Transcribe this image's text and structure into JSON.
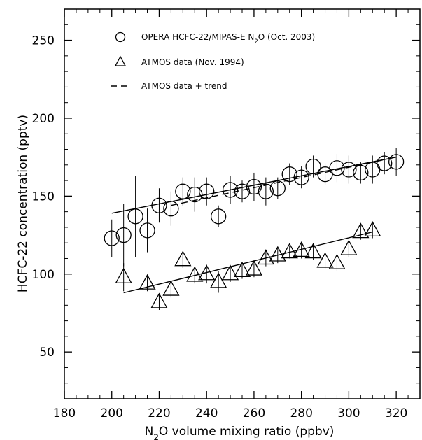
{
  "chart_data": {
    "type": "scatter",
    "xlabel": "N₂O volume mixing ratio (ppbv)",
    "xlabel_parts": {
      "pre": "N",
      "sub": "2",
      "post": "O volume mixing ratio (ppbv)"
    },
    "ylabel": "HCFC-22 concentration (pptv)",
    "xlim": [
      180,
      330
    ],
    "ylim": [
      20,
      270
    ],
    "x_ticks": [
      180,
      200,
      220,
      240,
      260,
      280,
      300,
      320
    ],
    "y_ticks": [
      50,
      100,
      150,
      200,
      250
    ],
    "grid": false,
    "legend_position": "top",
    "legend": [
      {
        "marker": "circle",
        "pre": "OPERA HCFC-22/MIPAS-E N",
        "sub": "2",
        "post": "O (Oct. 2003)"
      },
      {
        "marker": "triangle",
        "pre": "ATMOS data (Nov. 1994)",
        "sub": "",
        "post": ""
      },
      {
        "marker": "dashed-line",
        "pre": "ATMOS data + trend",
        "sub": "",
        "post": ""
      }
    ],
    "series": [
      {
        "name": "OPERA HCFC-22/MIPAS-E N2O (Oct. 2003)",
        "marker": "circle",
        "x": [
          200,
          205,
          210,
          215,
          220,
          225,
          230,
          235,
          240,
          245,
          250,
          255,
          260,
          265,
          270,
          275,
          280,
          285,
          290,
          295,
          300,
          305,
          310,
          315,
          320
        ],
        "y": [
          123,
          125,
          137,
          128,
          144,
          142,
          153,
          151,
          153,
          137,
          154,
          153,
          156,
          153,
          155,
          164,
          162,
          169,
          164,
          168,
          167,
          165,
          167,
          171,
          172
        ],
        "err": [
          12,
          20,
          26,
          14,
          11,
          11,
          9,
          11,
          9,
          7,
          9,
          7,
          9,
          9,
          7,
          7,
          7,
          7,
          7,
          9,
          9,
          7,
          9,
          7,
          9
        ]
      },
      {
        "name": "ATMOS data (Nov. 1994)",
        "marker": "triangle",
        "x": [
          205,
          215,
          220,
          225,
          230,
          235,
          240,
          245,
          250,
          255,
          260,
          265,
          270,
          275,
          280,
          285,
          290,
          295,
          300,
          305,
          310
        ],
        "y": [
          98,
          94,
          82,
          90,
          109,
          99,
          100,
          95,
          100,
          102,
          103,
          110,
          112,
          114,
          115,
          114,
          108,
          107,
          116,
          127,
          128
        ],
        "err": [
          9,
          5,
          5,
          5,
          5,
          5,
          6,
          7,
          5,
          5,
          5,
          5,
          5,
          4,
          5,
          5,
          5,
          5,
          5,
          5,
          5
        ]
      }
    ],
    "fit_lines": [
      {
        "name": "OPERA fit",
        "style": "solid",
        "x": [
          200,
          320
        ],
        "y": [
          139,
          175
        ]
      },
      {
        "name": "ATMOS fit",
        "style": "solid",
        "x": [
          205,
          310
        ],
        "y": [
          88,
          127
        ]
      },
      {
        "name": "ATMOS data + trend",
        "style": "dashed",
        "x": [
          225,
          320
        ],
        "y": [
          144,
          175
        ]
      }
    ]
  }
}
